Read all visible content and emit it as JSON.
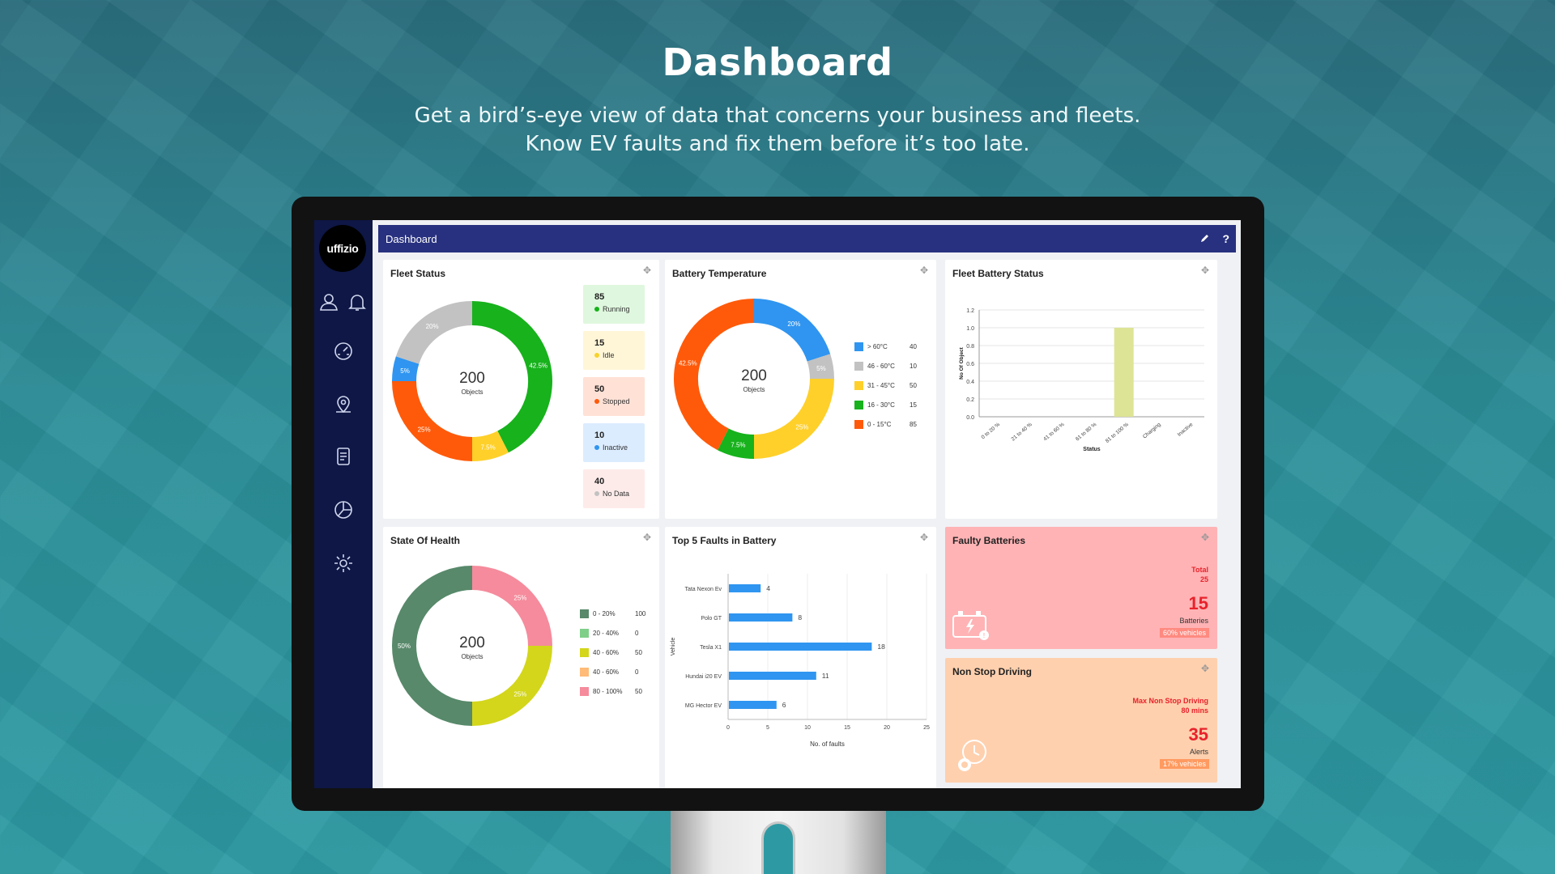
{
  "hero": {
    "title": "Dashboard",
    "line1": "Get a bird’s-eye view of data that concerns your business and fleets.",
    "line2": "Know EV faults and fix them before it’s too late."
  },
  "app": {
    "logo": "uffizio",
    "header_title": "Dashboard",
    "header_help": "?",
    "sidebar_icons": [
      "user-icon",
      "bell-icon",
      "speedometer-icon",
      "map-pin-icon",
      "report-icon",
      "pie-chart-icon",
      "settings-icon"
    ]
  },
  "fleet_status": {
    "title": "Fleet Status",
    "center_value": "200",
    "center_label": "Objects",
    "items": [
      {
        "count": "85",
        "label": "Running",
        "color": "#17b21c",
        "bg": "#dff7de"
      },
      {
        "count": "15",
        "label": "Idle",
        "color": "#f7d22c",
        "bg": "#fff6d8"
      },
      {
        "count": "50",
        "label": "Stopped",
        "color": "#ff5a0a",
        "bg": "#ffe1d6"
      },
      {
        "count": "10",
        "label": "Inactive",
        "color": "#2f95f0",
        "bg": "#dcecff"
      },
      {
        "count": "40",
        "label": "No Data",
        "color": "#c2c2c2",
        "bg": "#fdebea"
      }
    ]
  },
  "battery_temperature": {
    "title": "Battery Temperature",
    "center_value": "200",
    "center_label": "Objects",
    "items": [
      {
        "label": "> 60°C",
        "value": "40",
        "color": "#2f95f0"
      },
      {
        "label": "46 - 60°C",
        "value": "10",
        "color": "#c2c2c2"
      },
      {
        "label": "31 - 45°C",
        "value": "50",
        "color": "#ffd02a"
      },
      {
        "label": "16 - 30°C",
        "value": "15",
        "color": "#17b21c"
      },
      {
        "label": "0 - 15°C",
        "value": "85",
        "color": "#ff5a0a"
      }
    ]
  },
  "fleet_battery_status": {
    "title": "Fleet Battery Status"
  },
  "state_of_health": {
    "title": "State Of Health",
    "center_value": "200",
    "center_label": "Objects",
    "items": [
      {
        "label": "0 - 20%",
        "value": "100",
        "color": "#57896a"
      },
      {
        "label": "20 - 40%",
        "value": "0",
        "color": "#7fcf88"
      },
      {
        "label": "40 - 60%",
        "value": "50",
        "color": "#d3d61a"
      },
      {
        "label": "40 - 60%",
        "value": "0",
        "color": "#ffbb77"
      },
      {
        "label": "80 - 100%",
        "value": "50",
        "color": "#f58b9c"
      }
    ]
  },
  "top_faults": {
    "title": "Top 5 Faults in Battery"
  },
  "faulty_batteries": {
    "title": "Faulty Batteries",
    "total_label": "Total",
    "total_value": "25",
    "value": "15",
    "unit": "Batteries",
    "pill": "60% vehicles",
    "bg": "#ffb3b5"
  },
  "non_stop_driving": {
    "title": "Non Stop Driving",
    "max_label": "Max Non Stop Driving",
    "max_value": "80 mins",
    "value": "35",
    "unit": "Alerts",
    "pill": "17% vehicles",
    "bg": "#ffd0ae"
  },
  "chart_data": [
    {
      "type": "pie",
      "title": "Fleet Status",
      "categories": [
        "Running",
        "Idle",
        "Stopped",
        "Inactive",
        "No Data"
      ],
      "values": [
        42.5,
        7.5,
        25,
        5,
        20
      ],
      "labels": [
        "42.5%",
        "7.5%",
        "25%",
        "5%",
        "20%"
      ],
      "colors": [
        "#17b21c",
        "#ffd02a",
        "#ff5a0a",
        "#2f95f0",
        "#c2c2c2"
      ]
    },
    {
      "type": "pie",
      "title": "Battery Temperature",
      "categories": [
        "> 60°C",
        "46 - 60°C",
        "31 - 45°C",
        "16 - 30°C",
        "0 - 15°C"
      ],
      "values": [
        20,
        5,
        25,
        7.5,
        42.5
      ],
      "labels": [
        "20%",
        "5%",
        "25%",
        "7.5%",
        "42.5%"
      ],
      "colors": [
        "#2f95f0",
        "#c2c2c2",
        "#ffd02a",
        "#17b21c",
        "#ff5a0a"
      ]
    },
    {
      "type": "bar",
      "title": "Fleet Battery Status",
      "categories": [
        "0 to 20 %",
        "21 to 40 %",
        "41 to 60 %",
        "61 to 80 %",
        "81 to 100 %",
        "Charging",
        "Inactive"
      ],
      "values": [
        0,
        0,
        0,
        0,
        1.0,
        0,
        0
      ],
      "xlabel": "Status",
      "ylabel": "No Of Object",
      "ylim": [
        0,
        1.2
      ],
      "yticks": [
        "0.0",
        "0.2",
        "0.4",
        "0.6",
        "0.8",
        "1.0",
        "1.2"
      ],
      "bar_color": "#dde495",
      "grid": true
    },
    {
      "type": "pie",
      "title": "State Of Health",
      "categories": [
        "80 - 100%",
        "40 - 60%",
        "0 - 20%"
      ],
      "values": [
        25,
        25,
        50
      ],
      "labels": [
        "25%",
        "25%",
        "50%"
      ],
      "colors": [
        "#f58b9c",
        "#d3d61a",
        "#57896a"
      ]
    },
    {
      "type": "bar",
      "orientation": "horizontal",
      "title": "Top 5 Faults in Battery",
      "categories": [
        "Tata Nexon Ev",
        "Polo GT",
        "Tesla X1",
        "Hundai i20 EV",
        "MG Hector EV"
      ],
      "values": [
        4,
        8,
        18,
        11,
        6
      ],
      "xlabel": "No. of faults",
      "ylabel": "Vehicle",
      "xlim": [
        0,
        25
      ],
      "xticks": [
        "0",
        "5",
        "10",
        "15",
        "20",
        "25"
      ],
      "bar_color": "#2f95f0"
    }
  ]
}
